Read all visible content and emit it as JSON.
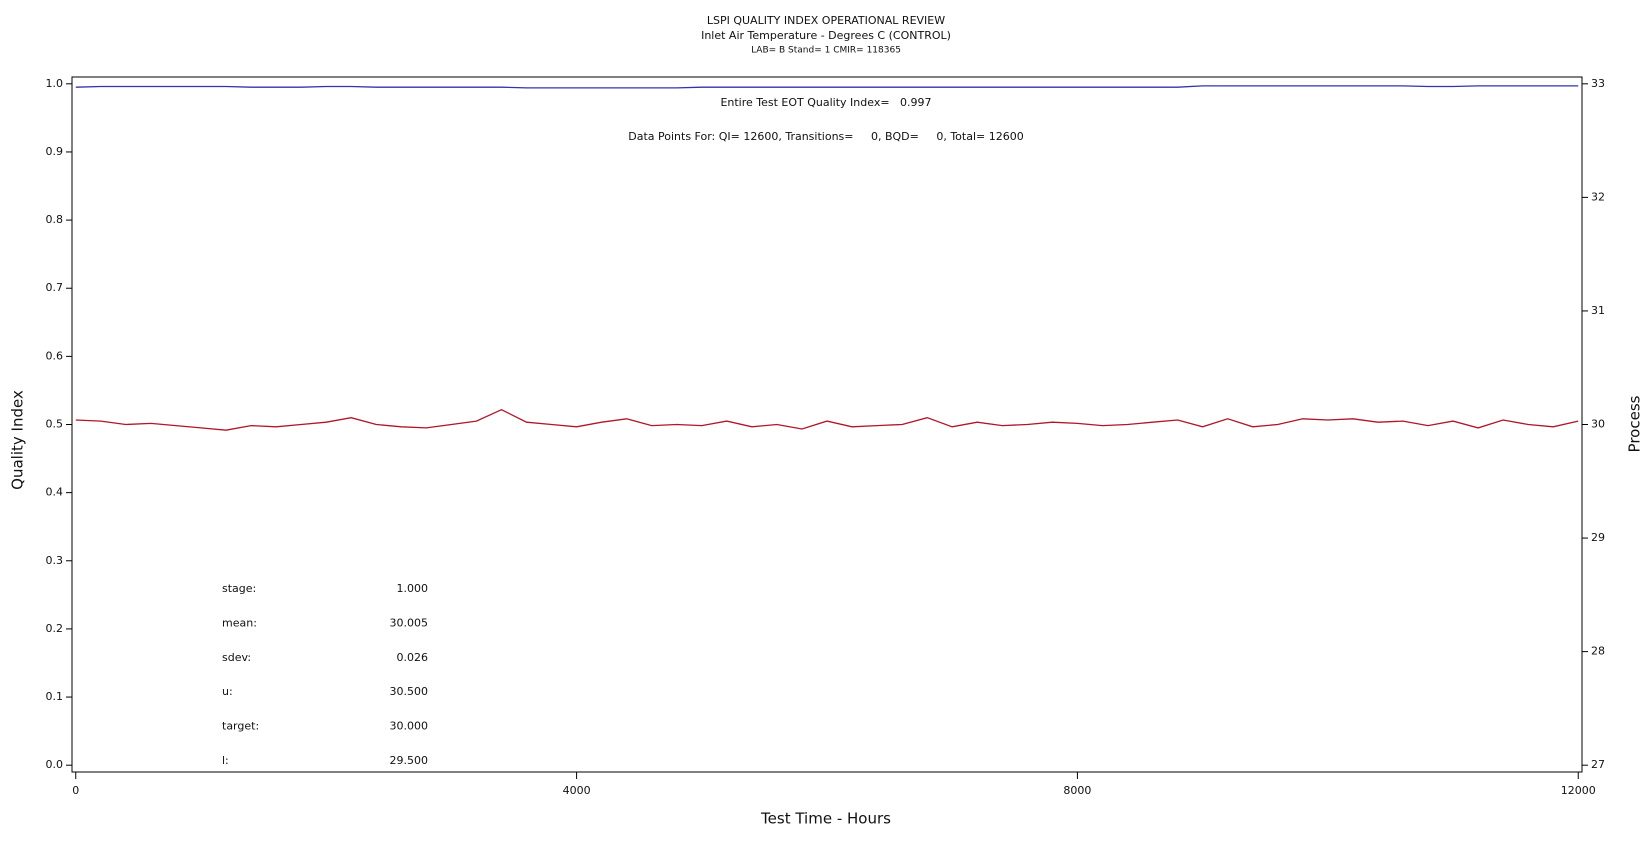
{
  "chart_data": {
    "type": "line",
    "title": "LSPI QUALITY INDEX OPERATIONAL REVIEW",
    "subtitle": "Inlet Air Temperature - Degrees C (CONTROL)",
    "subtitle2": "LAB= B Stand= 1 CMIR= 118365",
    "annotations": [
      "Entire Test EOT Quality Index=   0.997",
      "Data Points For: QI= 12600, Transitions=     0, BQD=     0, Total= 12600"
    ],
    "stats": [
      {
        "label": "stage:",
        "value": "1.000"
      },
      {
        "label": "mean:",
        "value": "30.005"
      },
      {
        "label": "sdev:",
        "value": "0.026"
      },
      {
        "label": "u:",
        "value": "30.500"
      },
      {
        "label": "target:",
        "value": "30.000"
      },
      {
        "label": "l:",
        "value": "29.500"
      }
    ],
    "x_label": "Test Time - Hours",
    "y_label": "Quality Index",
    "y2_label": "Process",
    "x": [
      0,
      200,
      400,
      600,
      800,
      1000,
      1200,
      1400,
      1600,
      1800,
      2000,
      2200,
      2400,
      2600,
      2800,
      3000,
      3200,
      3400,
      3600,
      3800,
      4000,
      4200,
      4400,
      4600,
      4800,
      5000,
      5200,
      5400,
      5600,
      5800,
      6000,
      6200,
      6400,
      6600,
      6800,
      7000,
      7200,
      7400,
      7600,
      7800,
      8000,
      8200,
      8400,
      8600,
      8800,
      9000,
      9200,
      9400,
      9600,
      9800,
      10000,
      10200,
      10400,
      10600,
      10800,
      11000,
      11200,
      11400,
      11600,
      11800,
      12000
    ],
    "series": [
      {
        "name": "Quality Index",
        "color": "#3333aa",
        "axis": "y",
        "values": [
          0.995,
          0.996,
          0.996,
          0.996,
          0.996,
          0.996,
          0.996,
          0.995,
          0.995,
          0.995,
          0.996,
          0.996,
          0.995,
          0.995,
          0.995,
          0.995,
          0.995,
          0.995,
          0.994,
          0.994,
          0.994,
          0.994,
          0.994,
          0.994,
          0.994,
          0.995,
          0.995,
          0.995,
          0.995,
          0.995,
          0.995,
          0.995,
          0.995,
          0.995,
          0.995,
          0.995,
          0.995,
          0.995,
          0.995,
          0.995,
          0.995,
          0.995,
          0.995,
          0.995,
          0.995,
          0.997,
          0.997,
          0.997,
          0.997,
          0.997,
          0.997,
          0.997,
          0.997,
          0.997,
          0.996,
          0.996,
          0.997,
          0.997,
          0.997,
          0.997,
          0.997
        ]
      },
      {
        "name": "Process",
        "color": "#b0152a",
        "axis": "y2",
        "values": [
          30.04,
          30.03,
          30.0,
          30.01,
          29.99,
          29.97,
          29.95,
          29.99,
          29.98,
          30.0,
          30.02,
          30.06,
          30.0,
          29.98,
          29.97,
          30.0,
          30.03,
          30.13,
          30.02,
          30.0,
          29.98,
          30.02,
          30.05,
          29.99,
          30.0,
          29.99,
          30.03,
          29.98,
          30.0,
          29.96,
          30.03,
          29.98,
          29.99,
          30.0,
          30.06,
          29.98,
          30.02,
          29.99,
          30.0,
          30.02,
          30.01,
          29.99,
          30.0,
          30.02,
          30.04,
          29.98,
          30.05,
          29.98,
          30.0,
          30.05,
          30.04,
          30.05,
          30.02,
          30.03,
          29.99,
          30.03,
          29.97,
          30.04,
          30.0,
          29.98,
          30.03
        ]
      }
    ],
    "xlim": [
      -30,
      12030
    ],
    "xticks": [
      0,
      4000,
      8000,
      12000
    ],
    "ylim": [
      -0.01,
      1.01
    ],
    "yticks": [
      {
        "value": 0,
        "label": "0.0"
      },
      0.1,
      0.2,
      0.3,
      0.4,
      0.5,
      0.6,
      0.7,
      0.8,
      0.9,
      {
        "value": 1,
        "label": "1.0"
      }
    ],
    "y2lim": [
      26.94,
      33.06
    ],
    "y2ticks": [
      27,
      28,
      29,
      30,
      31,
      32,
      33
    ]
  }
}
